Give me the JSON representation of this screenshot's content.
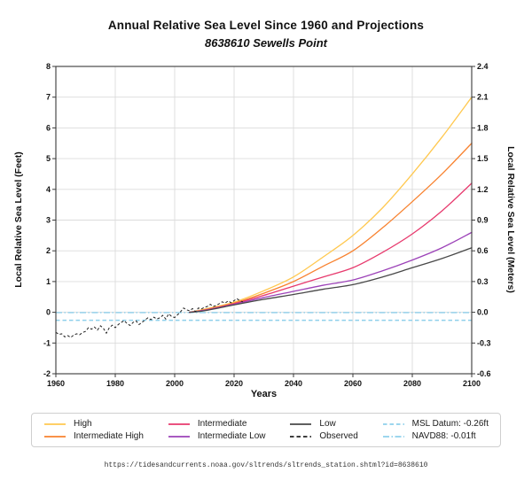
{
  "chart_data": {
    "type": "line",
    "title": "Annual Relative Sea Level Since 1960 and Projections",
    "subtitle": "8638610 Sewells Point",
    "xlabel": "Years",
    "ylabel_left": "Local Relative Sea Level (Feet)",
    "ylabel_right": "Local Relative Sea Level (Meters)",
    "xlim": [
      1960,
      2100
    ],
    "x_ticks": [
      1960,
      1980,
      2000,
      2020,
      2040,
      2060,
      2080,
      2100
    ],
    "ylim_feet": [
      -2,
      8
    ],
    "y_ticks_feet": [
      -2,
      -1,
      0,
      1,
      2,
      3,
      4,
      5,
      6,
      7,
      8
    ],
    "ylim_meters": [
      -0.6,
      2.4
    ],
    "y_ticks_meters": [
      -0.6,
      -0.3,
      0.0,
      0.3,
      0.6,
      0.9,
      1.2,
      1.5,
      1.8,
      2.1,
      2.4
    ],
    "grid": true,
    "legend_position": "bottom",
    "reference_lines": [
      {
        "name": "MSL Datum",
        "label": "MSL Datum: -0.26ft",
        "value_feet": -0.26,
        "style": "dashed",
        "color": "#8ed0eb"
      },
      {
        "name": "NAVD88",
        "label": "NAVD88: -0.01ft",
        "value_feet": -0.01,
        "style": "dashdot",
        "color": "#8ed0eb"
      }
    ],
    "projections": {
      "x": [
        2005,
        2010,
        2020,
        2030,
        2040,
        2050,
        2060,
        2070,
        2080,
        2090,
        2100
      ],
      "units": "feet",
      "series": [
        {
          "name": "High",
          "color": "#ffc84f",
          "style": "solid",
          "values": [
            0.0,
            0.1,
            0.33,
            0.7,
            1.15,
            1.8,
            2.5,
            3.4,
            4.5,
            5.7,
            7.0
          ]
        },
        {
          "name": "Intermediate High",
          "color": "#f8822f",
          "style": "solid",
          "values": [
            0.0,
            0.08,
            0.3,
            0.62,
            1.0,
            1.5,
            2.0,
            2.75,
            3.6,
            4.5,
            5.5
          ]
        },
        {
          "name": "Intermediate",
          "color": "#e73a6e",
          "style": "solid",
          "values": [
            0.0,
            0.07,
            0.28,
            0.55,
            0.85,
            1.15,
            1.45,
            1.95,
            2.55,
            3.3,
            4.2
          ]
        },
        {
          "name": "Intermediate Low",
          "color": "#9c42b8",
          "style": "solid",
          "values": [
            0.0,
            0.06,
            0.26,
            0.48,
            0.68,
            0.88,
            1.05,
            1.35,
            1.7,
            2.1,
            2.6
          ]
        },
        {
          "name": "Low",
          "color": "#484848",
          "style": "solid",
          "values": [
            0.0,
            0.05,
            0.24,
            0.42,
            0.58,
            0.75,
            0.9,
            1.15,
            1.45,
            1.75,
            2.1
          ]
        }
      ]
    },
    "observed": {
      "name": "Observed",
      "color": "#222222",
      "style": "dashed",
      "units": "feet",
      "years": [
        1960,
        1961,
        1962,
        1963,
        1964,
        1965,
        1966,
        1967,
        1968,
        1969,
        1970,
        1971,
        1972,
        1973,
        1974,
        1975,
        1976,
        1977,
        1978,
        1979,
        1980,
        1981,
        1982,
        1983,
        1984,
        1985,
        1986,
        1987,
        1988,
        1989,
        1990,
        1991,
        1992,
        1993,
        1994,
        1995,
        1996,
        1997,
        1998,
        1999,
        2000,
        2001,
        2002,
        2003,
        2004,
        2005,
        2006,
        2007,
        2008,
        2009,
        2010,
        2011,
        2012,
        2013,
        2014,
        2015,
        2016,
        2017,
        2018,
        2019,
        2020,
        2021,
        2022,
        2023
      ],
      "values_feet": [
        -0.65,
        -0.72,
        -0.7,
        -0.8,
        -0.76,
        -0.82,
        -0.74,
        -0.7,
        -0.73,
        -0.66,
        -0.62,
        -0.5,
        -0.55,
        -0.48,
        -0.58,
        -0.44,
        -0.52,
        -0.68,
        -0.5,
        -0.42,
        -0.5,
        -0.4,
        -0.33,
        -0.27,
        -0.37,
        -0.43,
        -0.33,
        -0.28,
        -0.4,
        -0.33,
        -0.25,
        -0.18,
        -0.24,
        -0.16,
        -0.22,
        -0.18,
        -0.1,
        -0.22,
        -0.05,
        -0.14,
        -0.17,
        -0.08,
        0.02,
        0.14,
        0.08,
        0.05,
        0.12,
        0.02,
        0.14,
        0.11,
        0.16,
        0.19,
        0.26,
        0.19,
        0.22,
        0.28,
        0.34,
        0.3,
        0.37,
        0.31,
        0.38,
        0.44,
        0.37,
        0.34
      ]
    }
  },
  "legend": {
    "items": [
      {
        "label": "High",
        "color": "#ffc84f",
        "style": "solid"
      },
      {
        "label": "Intermediate High",
        "color": "#f8822f",
        "style": "solid"
      },
      {
        "label": "Intermediate",
        "color": "#e73a6e",
        "style": "solid"
      },
      {
        "label": "Intermediate Low",
        "color": "#9c42b8",
        "style": "solid"
      },
      {
        "label": "Low",
        "color": "#484848",
        "style": "solid"
      },
      {
        "label": "Observed",
        "color": "#222222",
        "style": "dashed"
      },
      {
        "label": "MSL Datum: -0.26ft",
        "color": "#8ed0eb",
        "style": "dashed"
      },
      {
        "label": "NAVD88: -0.01ft",
        "color": "#8ed0eb",
        "style": "dashdot"
      }
    ]
  },
  "footer": {
    "source_url": "https://tidesandcurrents.noaa.gov/sltrends/sltrends_station.shtml?id=8638610"
  },
  "style": {
    "grid_color": "#dcdcdc",
    "spine_color": "#3a3a3a",
    "background": "#ffffff"
  }
}
